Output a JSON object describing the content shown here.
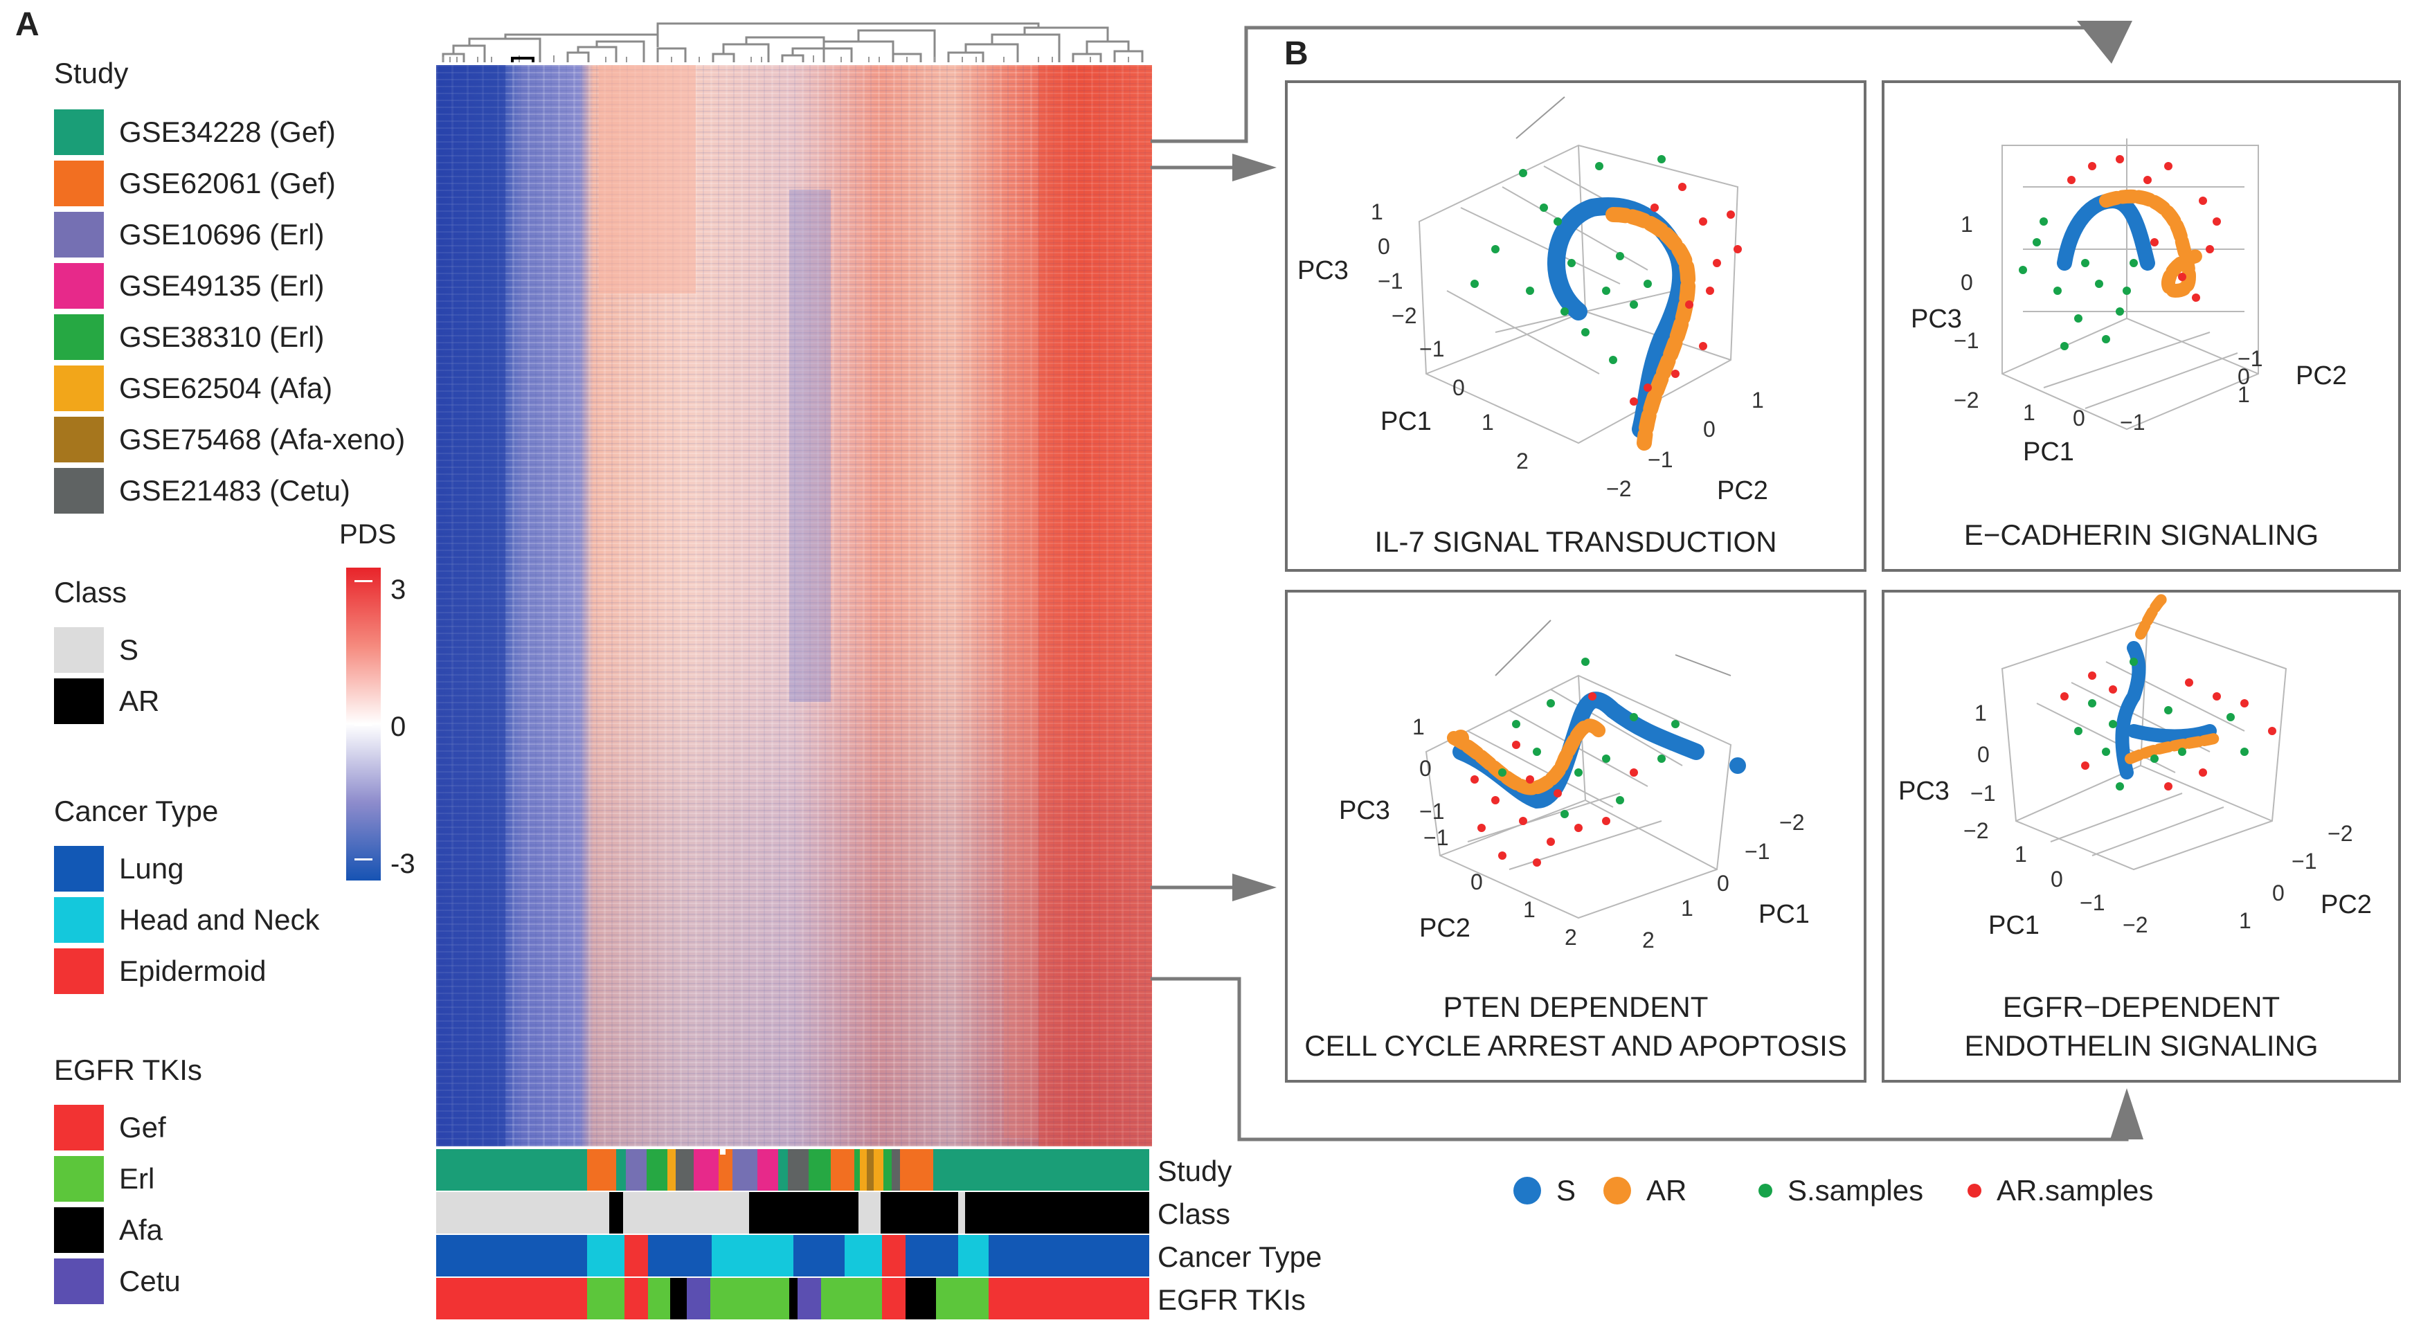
{
  "panels": {
    "a": "A",
    "b": "B"
  },
  "legend": {
    "study_title": "Study",
    "study": [
      {
        "label": "GSE34228 (Gef)",
        "color": "#1a9e77"
      },
      {
        "label": "GSE62061 (Gef)",
        "color": "#f26f21"
      },
      {
        "label": "GSE10696 (Erl)",
        "color": "#7570b3"
      },
      {
        "label": "GSE49135 (Erl)",
        "color": "#e7298a"
      },
      {
        "label": "GSE38310 (Erl)",
        "color": "#26a843"
      },
      {
        "label": "GSE62504 (Afa)",
        "color": "#f2a61a"
      },
      {
        "label": "GSE75468 (Afa-xeno)",
        "color": "#a6761d"
      },
      {
        "label": "GSE21483 (Cetu)",
        "color": "#5f6363"
      }
    ],
    "class_title": "Class",
    "class": [
      {
        "label": "S",
        "color": "#dcdcdc"
      },
      {
        "label": "AR",
        "color": "#000000"
      }
    ],
    "cancer_title": "Cancer Type",
    "cancer": [
      {
        "label": "Lung",
        "color": "#1258b5"
      },
      {
        "label": "Head and Neck",
        "color": "#14c8dc"
      },
      {
        "label": "Epidermoid",
        "color": "#f23333"
      }
    ],
    "tki_title": "EGFR TKIs",
    "tki": [
      {
        "label": "Gef",
        "color": "#f23333"
      },
      {
        "label": "Erl",
        "color": "#5cc63b"
      },
      {
        "label": "Afa",
        "color": "#000000"
      },
      {
        "label": "Cetu",
        "color": "#5b4fb1"
      }
    ]
  },
  "colorbar": {
    "title": "PDS",
    "max": "3",
    "mid": "0",
    "min": "-3",
    "high_color": "#f23333",
    "low_color": "#1a55b0"
  },
  "annotation_rows": [
    "Study",
    "Class",
    "Cancer Type",
    "EGFR TKIs"
  ],
  "pca_plots": [
    {
      "title_lines": [
        "IL-7 SIGNAL TRANSDUCTION"
      ],
      "axes": {
        "x": "PC1",
        "y": "PC2",
        "z": "PC3"
      },
      "ticks": {
        "z": [
          "1",
          "0",
          "−1",
          "−2"
        ],
        "x": [
          "−1",
          "0",
          "1",
          "2"
        ],
        "y": [
          "1",
          "0",
          "−1",
          "−2"
        ]
      }
    },
    {
      "title_lines": [
        "E−CADHERIN SIGNALING"
      ],
      "axes": {
        "x": "PC1",
        "y": "PC2",
        "z": "PC3"
      },
      "ticks": {
        "z": [
          "1",
          "0",
          "−1",
          "−2"
        ],
        "x": [
          "1",
          "0",
          "−1"
        ],
        "y": [
          "−1",
          "0",
          "1"
        ]
      }
    },
    {
      "title_lines": [
        "PTEN DEPENDENT",
        "CELL CYCLE ARREST AND APOPTOSIS"
      ],
      "axes": {
        "x": "PC2",
        "y": "PC1",
        "z": "PC3"
      },
      "ticks": {
        "z": [
          "1",
          "0",
          "−1"
        ],
        "x": [
          "−1",
          "0",
          "1",
          "2"
        ],
        "y": [
          "−2",
          "−1",
          "0",
          "1",
          "2"
        ]
      }
    },
    {
      "title_lines": [
        "EGFR−DEPENDENT",
        "ENDOTHELIN SIGNALING"
      ],
      "axes": {
        "x": "PC1",
        "y": "PC2",
        "z": "PC3"
      },
      "ticks": {
        "z": [
          "1",
          "0",
          "−1",
          "−2"
        ],
        "x": [
          "1",
          "0",
          "−1",
          "−2"
        ],
        "y": [
          "−2",
          "−1",
          "0",
          "1"
        ]
      }
    }
  ],
  "legend_b": [
    {
      "label": "S",
      "color": "#1f78c8",
      "size": "large"
    },
    {
      "label": "AR",
      "color": "#f5922a",
      "size": "large"
    },
    {
      "label": "S.samples",
      "color": "#17a34a",
      "size": "small"
    },
    {
      "label": "AR.samples",
      "color": "#ee2a2a",
      "size": "small"
    }
  ]
}
